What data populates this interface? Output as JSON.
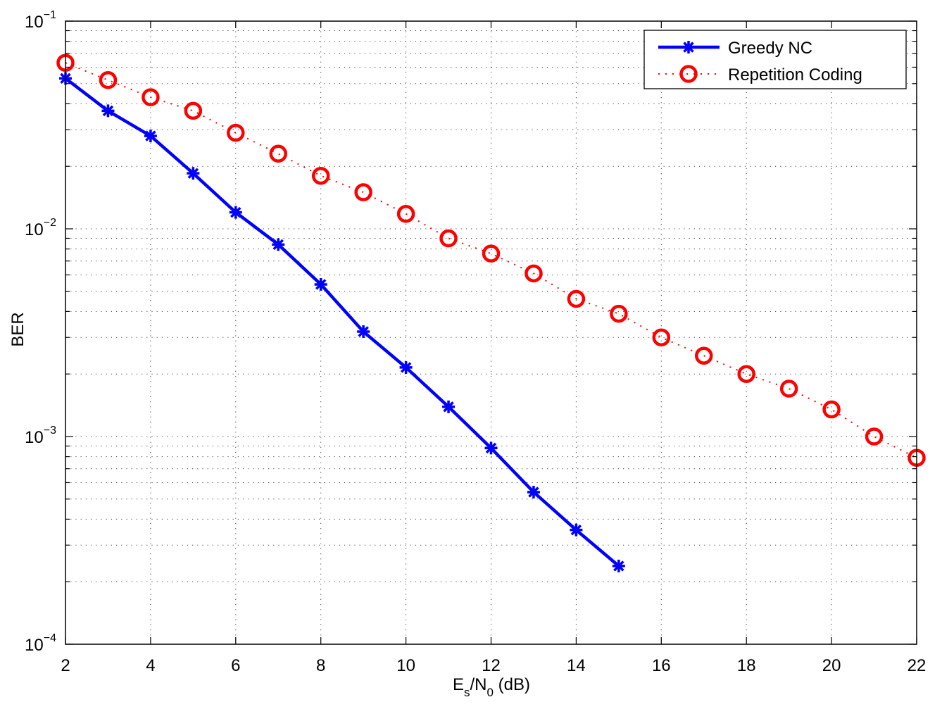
{
  "chart_data": {
    "type": "line",
    "xlabel": {
      "base": "E",
      "sub1": "s",
      "mid": "/N",
      "sub2": "0",
      "tail": " (dB)"
    },
    "ylabel": "BER",
    "xlim": [
      2,
      22
    ],
    "ylim": [
      0.0001,
      0.1
    ],
    "yscale": "log",
    "grid": true,
    "legend_position": "top-right",
    "x_ticks": [
      2,
      4,
      6,
      8,
      10,
      12,
      14,
      16,
      18,
      20,
      22
    ],
    "y_ticks": [
      {
        "base": "10",
        "exp": "−4",
        "value": 0.0001
      },
      {
        "base": "10",
        "exp": "−3",
        "value": 0.001
      },
      {
        "base": "10",
        "exp": "−2",
        "value": 0.01
      },
      {
        "base": "10",
        "exp": "−1",
        "value": 0.1
      }
    ],
    "series": [
      {
        "name": "Greedy NC",
        "color": "#0000ff",
        "line": "solid",
        "marker": "asterisk",
        "x": [
          2,
          3,
          4,
          5,
          6,
          7,
          8,
          9,
          10,
          11,
          12,
          13,
          14,
          15
        ],
        "y": [
          0.053,
          0.037,
          0.028,
          0.0185,
          0.012,
          0.0084,
          0.0054,
          0.0032,
          0.00215,
          0.00139,
          0.00088,
          0.00054,
          0.000355,
          0.000238
        ]
      },
      {
        "name": "Repetition Coding",
        "color": "#ff0000",
        "line": "dotted",
        "marker": "circle",
        "x": [
          2,
          3,
          4,
          5,
          6,
          7,
          8,
          9,
          10,
          11,
          12,
          13,
          14,
          15,
          16,
          17,
          18,
          19,
          20,
          21,
          22
        ],
        "y": [
          0.063,
          0.052,
          0.043,
          0.037,
          0.029,
          0.023,
          0.018,
          0.015,
          0.0118,
          0.009,
          0.0076,
          0.0061,
          0.0046,
          0.0039,
          0.003,
          0.00245,
          0.002,
          0.0017,
          0.00135,
          0.001,
          0.00079
        ]
      }
    ]
  }
}
